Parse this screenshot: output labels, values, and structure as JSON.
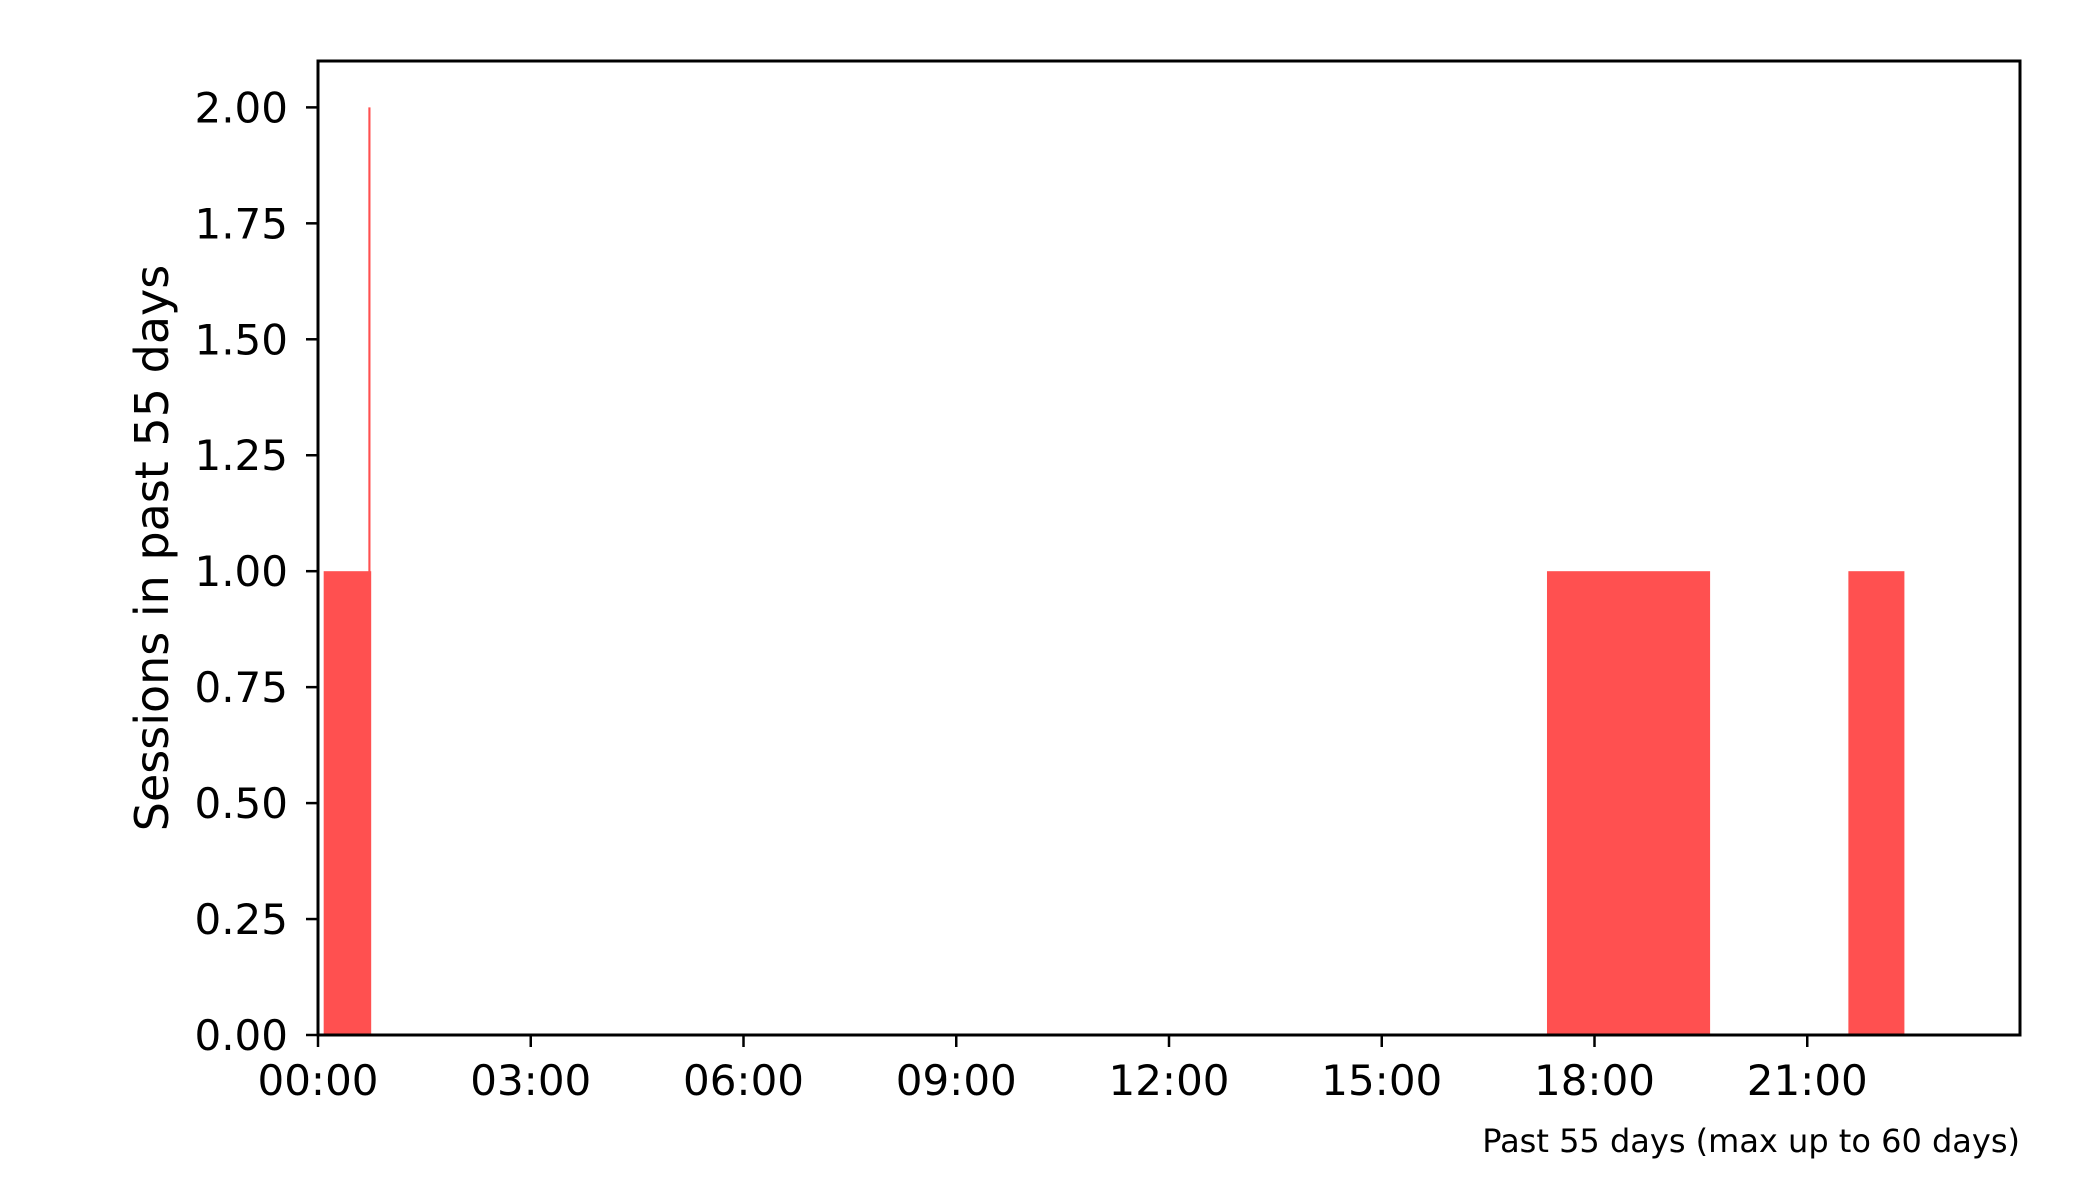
{
  "chart_data": {
    "type": "bar",
    "title": "",
    "xlabel": "",
    "ylabel": "Sessions in past 55 days",
    "annotation": "Past 55 days (max up to 60 days)",
    "x_unit": "hours",
    "xlim": [
      0,
      24
    ],
    "ylim": [
      0,
      2.1
    ],
    "x_ticks": [
      {
        "value": 0,
        "label": "00:00"
      },
      {
        "value": 3,
        "label": "03:00"
      },
      {
        "value": 6,
        "label": "06:00"
      },
      {
        "value": 9,
        "label": "09:00"
      },
      {
        "value": 12,
        "label": "12:00"
      },
      {
        "value": 15,
        "label": "15:00"
      },
      {
        "value": 18,
        "label": "18:00"
      },
      {
        "value": 21,
        "label": "21:00"
      }
    ],
    "y_ticks": [
      {
        "value": 0,
        "label": "0.00"
      },
      {
        "value": 0.25,
        "label": "0.25"
      },
      {
        "value": 0.5,
        "label": "0.50"
      },
      {
        "value": 0.75,
        "label": "0.75"
      },
      {
        "value": 1.0,
        "label": "1.00"
      },
      {
        "value": 1.25,
        "label": "1.25"
      },
      {
        "value": 1.5,
        "label": "1.50"
      },
      {
        "value": 1.75,
        "label": "1.75"
      },
      {
        "value": 2.0,
        "label": "2.00"
      }
    ],
    "bars": [
      {
        "start": 0.08,
        "end": 0.75,
        "value": 1
      },
      {
        "start": 0.71,
        "end": 0.74,
        "value": 2
      },
      {
        "start": 17.33,
        "end": 19.63,
        "value": 1
      },
      {
        "start": 21.58,
        "end": 22.37,
        "value": 1
      }
    ],
    "bar_color": "#ff5050",
    "grid": false,
    "legend": "none"
  }
}
